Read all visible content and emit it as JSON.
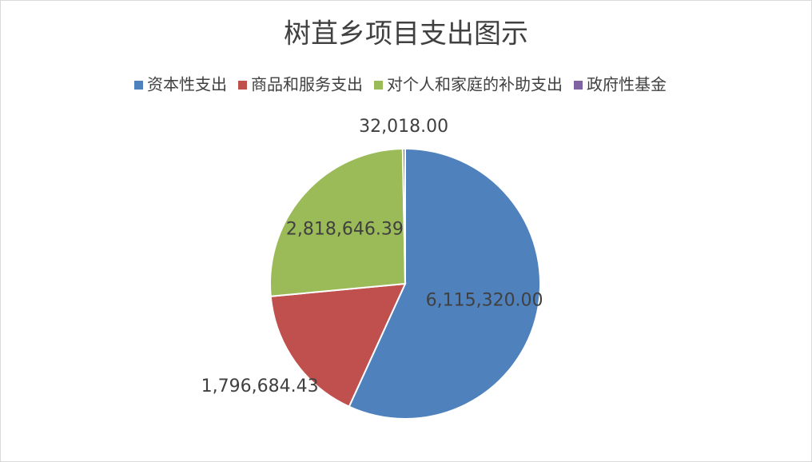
{
  "chart_data": {
    "type": "pie",
    "title": "树苴乡项目支出图示",
    "categories": [
      "资本性支出",
      "商品和服务支出",
      "对个人和家庭的补助支出",
      "政府性基金"
    ],
    "values": [
      6115320.0,
      1796684.43,
      2818646.39,
      32018.0
    ],
    "value_labels": [
      "6,115,320.00",
      "1,796,684.43",
      "2,818,646.39",
      "32,018.00"
    ],
    "colors": [
      "#4f81bd",
      "#c0504d",
      "#9bbb59",
      "#8064a2"
    ],
    "legend": "top"
  }
}
